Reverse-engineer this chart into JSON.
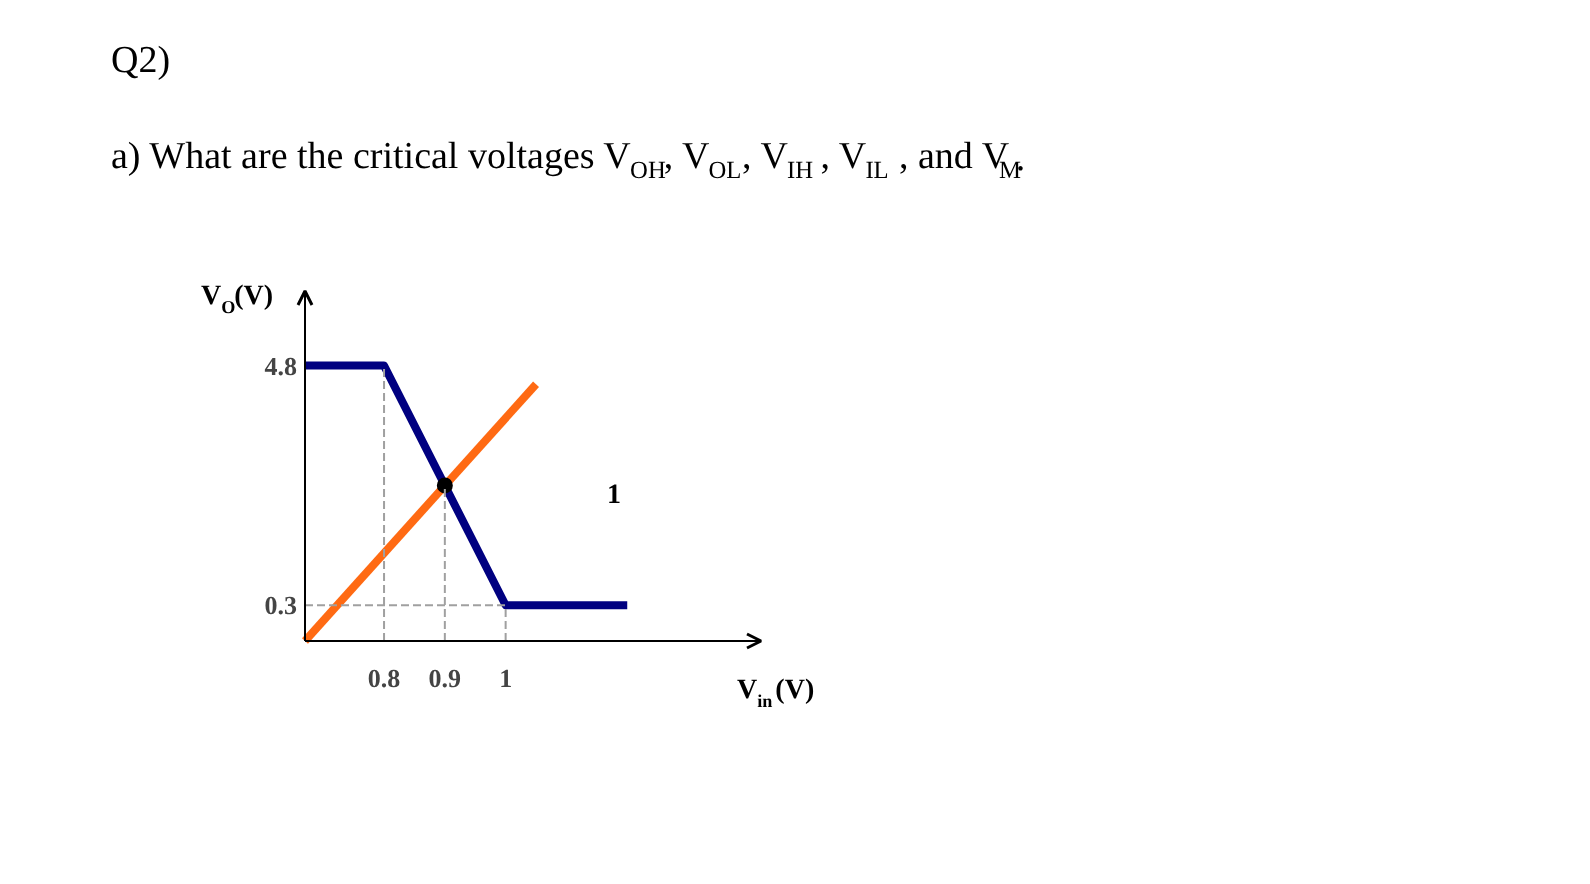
{
  "chart_data": {
    "type": "line",
    "title": "Q2)",
    "subtitle": "a) What are the critical voltages V$_{OH}$, V$_{OL}$, V$_{IH}$, V$_{IL}$, and V$_{M}$.",
    "xlabel": "V$_{in}$(V)",
    "ylabel": "V$_{O}$(V)",
    "xlim": [
      0.67,
      1.42
    ],
    "ylim": [
      -0.37,
      6.2
    ],
    "xticks": [
      0.8,
      0.9,
      1
    ],
    "yticks": [
      4.8,
      0.3
    ],
    "grid": false,
    "marker": "none",
    "series": [
      {
        "color": "#000080",
        "x": [
          0.67,
          0.8,
          1,
          1.2
        ],
        "values": [
          4.8,
          4.8,
          0.3,
          0.3
        ]
      },
      {
        "color": "#ff6a13",
        "x": [
          0.67,
          1.05
        ],
        "values": [
          -0.37,
          4.45
        ]
      },
      {
        "type": "scatter",
        "marker": "circle",
        "color": "#000000",
        "x": [
          0.9
        ],
        "values": [
          2.55
        ]
      },
      {
        "color": "#a0a0a0",
        "line_style": "dashed",
        "x": [
          0.8,
          0.8
        ],
        "values": [
          -0.37,
          4.8
        ]
      },
      {
        "color": "#a0a0a0",
        "line_style": "dashed",
        "x": [
          0.9,
          0.9
        ],
        "values": [
          -0.37,
          2.55
        ]
      },
      {
        "color": "#a0a0a0",
        "line_style": "dashed",
        "x": [
          1,
          1
        ],
        "values": [
          -0.37,
          0.3
        ]
      },
      {
        "color": "#a0a0a0",
        "line_style": "dashed",
        "x": [
          0.67,
          1
        ],
        "values": [
          0.3,
          0.3
        ]
      }
    ],
    "annotations": [
      "1"
    ]
  }
}
